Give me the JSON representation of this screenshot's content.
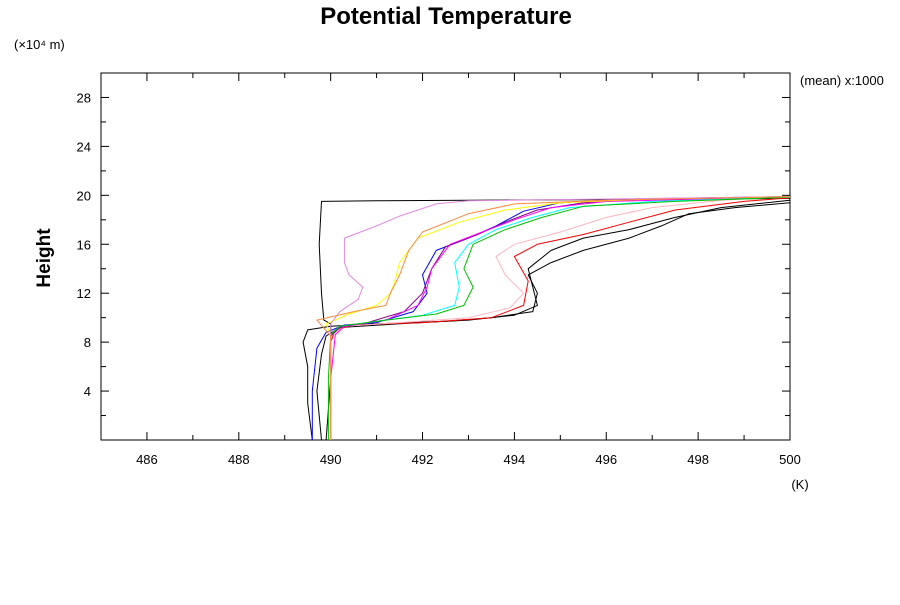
{
  "chart_data": {
    "type": "line",
    "title": "Potential Temperature",
    "ylabel": "Height",
    "y_scale_label": "(×10⁴ m)",
    "xunit_label": "(K)",
    "annotation": "(mean) x:1000",
    "xlim": [
      485,
      500
    ],
    "ylim": [
      0,
      30
    ],
    "xticks": [
      486,
      488,
      490,
      492,
      494,
      496,
      498,
      500
    ],
    "yticks": [
      4,
      8,
      12,
      16,
      20,
      24,
      28
    ],
    "grid": false,
    "legend": "none",
    "series": [
      {
        "color": "#000000",
        "points": [
          [
            489.9,
            0
          ],
          [
            490.0,
            5
          ],
          [
            490.0,
            9.5
          ],
          [
            489.85,
            9.8
          ],
          [
            489.8,
            12
          ],
          [
            489.75,
            16
          ],
          [
            489.8,
            19.5
          ],
          [
            491.0,
            19.55
          ],
          [
            493.0,
            19.6
          ],
          [
            496.0,
            19.65
          ],
          [
            498.0,
            19.7
          ],
          [
            500.0,
            19.75
          ]
        ]
      },
      {
        "color": "#000000",
        "points": [
          [
            489.6,
            0
          ],
          [
            489.5,
            3
          ],
          [
            489.5,
            6
          ],
          [
            489.4,
            8
          ],
          [
            489.5,
            9
          ],
          [
            490.0,
            9.3
          ],
          [
            491.0,
            9.5
          ],
          [
            492.5,
            9.7
          ],
          [
            493.5,
            10.0
          ],
          [
            494.4,
            10.5
          ],
          [
            494.5,
            12
          ],
          [
            494.3,
            13.5
          ],
          [
            494.8,
            14.5
          ],
          [
            495.5,
            15.5
          ],
          [
            496.5,
            16.5
          ],
          [
            497.2,
            17.5
          ],
          [
            497.8,
            18.5
          ],
          [
            498.8,
            19.0
          ],
          [
            500.0,
            19.4
          ]
        ]
      },
      {
        "color": "#000000",
        "points": [
          [
            489.8,
            0
          ],
          [
            489.7,
            4
          ],
          [
            489.8,
            7
          ],
          [
            489.9,
            8.5
          ],
          [
            490.2,
            9.2
          ],
          [
            491.5,
            9.5
          ],
          [
            493.0,
            9.8
          ],
          [
            494.0,
            10.2
          ],
          [
            494.5,
            11
          ],
          [
            494.4,
            12.5
          ],
          [
            494.3,
            14
          ],
          [
            494.8,
            15.5
          ],
          [
            495.5,
            16.5
          ],
          [
            496.5,
            17.2
          ],
          [
            497.5,
            18.2
          ],
          [
            498.5,
            19.0
          ],
          [
            500.0,
            19.6
          ]
        ]
      },
      {
        "color": "#ff0000",
        "points": [
          [
            490.0,
            0
          ],
          [
            490.0,
            4
          ],
          [
            490.0,
            8
          ],
          [
            490.1,
            9.0
          ],
          [
            490.5,
            9.4
          ],
          [
            492.0,
            9.6
          ],
          [
            493.5,
            10.0
          ],
          [
            494.2,
            11
          ],
          [
            494.3,
            13
          ],
          [
            494.0,
            15
          ],
          [
            494.5,
            16
          ],
          [
            495.5,
            16.8
          ],
          [
            496.5,
            17.8
          ],
          [
            497.5,
            18.8
          ],
          [
            499.0,
            19.5
          ],
          [
            500.0,
            19.8
          ]
        ]
      },
      {
        "color": "#ffb6c1",
        "points": [
          [
            490.0,
            0
          ],
          [
            490.0,
            5
          ],
          [
            490.0,
            8.5
          ],
          [
            490.3,
            9.3
          ],
          [
            491.5,
            9.6
          ],
          [
            493.0,
            10.0
          ],
          [
            493.9,
            10.8
          ],
          [
            494.2,
            12
          ],
          [
            493.8,
            13.5
          ],
          [
            493.6,
            15
          ],
          [
            494.0,
            16
          ],
          [
            495.0,
            17
          ],
          [
            496.0,
            18.2
          ],
          [
            497.0,
            19.0
          ],
          [
            498.5,
            19.6
          ],
          [
            500.0,
            19.9
          ]
        ]
      },
      {
        "color": "#0000ff",
        "points": [
          [
            489.6,
            0
          ],
          [
            489.6,
            4
          ],
          [
            489.7,
            7.5
          ],
          [
            489.9,
            8.8
          ],
          [
            490.3,
            9.4
          ],
          [
            491.0,
            9.6
          ],
          [
            491.8,
            10.5
          ],
          [
            492.1,
            12
          ],
          [
            492.0,
            13.5
          ],
          [
            492.3,
            15.5
          ],
          [
            493.0,
            16.5
          ],
          [
            493.6,
            17.5
          ],
          [
            494.2,
            18.7
          ],
          [
            495.0,
            19.4
          ],
          [
            496.5,
            19.7
          ],
          [
            500.0,
            19.9
          ]
        ]
      },
      {
        "color": "#800080",
        "points": [
          [
            490.0,
            0
          ],
          [
            490.0,
            5
          ],
          [
            490.0,
            8.5
          ],
          [
            490.2,
            9.2
          ],
          [
            490.8,
            9.6
          ],
          [
            491.6,
            10.5
          ],
          [
            492.0,
            12
          ],
          [
            492.2,
            14
          ],
          [
            492.5,
            15.8
          ],
          [
            493.2,
            16.8
          ],
          [
            493.8,
            17.8
          ],
          [
            494.5,
            18.8
          ],
          [
            495.5,
            19.4
          ],
          [
            497.0,
            19.7
          ],
          [
            500.0,
            19.9
          ]
        ]
      },
      {
        "color": "#ff00ff",
        "points": [
          [
            490.0,
            0
          ],
          [
            490.0,
            5
          ],
          [
            490.1,
            8.6
          ],
          [
            490.3,
            9.3
          ],
          [
            491.2,
            9.8
          ],
          [
            491.9,
            11
          ],
          [
            492.1,
            12.5
          ],
          [
            492.2,
            14
          ],
          [
            492.6,
            16
          ],
          [
            493.3,
            17
          ],
          [
            494.0,
            18
          ],
          [
            494.8,
            19.0
          ],
          [
            496.0,
            19.5
          ],
          [
            500.0,
            19.85
          ]
        ]
      },
      {
        "color": "#00ffff",
        "points": [
          [
            490.0,
            0
          ],
          [
            490.0,
            5
          ],
          [
            490.0,
            8.6
          ],
          [
            490.2,
            9.3
          ],
          [
            491.0,
            9.7
          ],
          [
            492.0,
            10.2
          ],
          [
            492.7,
            11
          ],
          [
            492.8,
            12.5
          ],
          [
            492.7,
            14.5
          ],
          [
            493.0,
            16
          ],
          [
            493.6,
            17.2
          ],
          [
            494.4,
            18.2
          ],
          [
            495.2,
            19.0
          ],
          [
            497.0,
            19.5
          ],
          [
            500.0,
            19.85
          ]
        ]
      },
      {
        "color": "#00c000",
        "points": [
          [
            489.95,
            0
          ],
          [
            489.95,
            5
          ],
          [
            490.0,
            8.6
          ],
          [
            490.2,
            9.3
          ],
          [
            491.2,
            9.8
          ],
          [
            492.3,
            10.3
          ],
          [
            492.9,
            11
          ],
          [
            493.1,
            12.5
          ],
          [
            492.9,
            14
          ],
          [
            493.1,
            16
          ],
          [
            493.8,
            17.2
          ],
          [
            494.6,
            18.2
          ],
          [
            495.5,
            19.1
          ],
          [
            497.5,
            19.5
          ],
          [
            500.0,
            19.85
          ]
        ]
      },
      {
        "color": "#ffff00",
        "points": [
          [
            490.0,
            0
          ],
          [
            490.0,
            5
          ],
          [
            490.0,
            8.5
          ],
          [
            489.9,
            9.5
          ],
          [
            490.4,
            10.3
          ],
          [
            491.0,
            11.0
          ],
          [
            491.3,
            12
          ],
          [
            491.4,
            13
          ],
          [
            491.5,
            14.5
          ],
          [
            491.9,
            16.5
          ],
          [
            492.8,
            17.8
          ],
          [
            493.8,
            18.8
          ],
          [
            495.0,
            19.4
          ],
          [
            497.0,
            19.7
          ],
          [
            500.0,
            19.9
          ]
        ]
      },
      {
        "color": "#e08ae0",
        "points": [
          [
            490.0,
            0
          ],
          [
            490.0,
            5
          ],
          [
            490.0,
            8.5
          ],
          [
            490.0,
            9.5
          ],
          [
            490.2,
            10.5
          ],
          [
            490.6,
            11.5
          ],
          [
            490.7,
            12.5
          ],
          [
            490.4,
            13.5
          ],
          [
            490.3,
            14.5
          ],
          [
            490.3,
            16.5
          ],
          [
            491.0,
            17.5
          ],
          [
            491.5,
            18.3
          ],
          [
            492.3,
            19.3
          ],
          [
            493.0,
            19.55
          ],
          [
            500.0,
            19.9
          ]
        ]
      },
      {
        "color": "#ff8c40",
        "points": [
          [
            490.0,
            0
          ],
          [
            490.0,
            5
          ],
          [
            490.0,
            8.5
          ],
          [
            489.7,
            9.8
          ],
          [
            490.5,
            10.5
          ],
          [
            491.2,
            11
          ],
          [
            491.3,
            12
          ],
          [
            491.5,
            13.5
          ],
          [
            491.7,
            15.5
          ],
          [
            492.0,
            17
          ],
          [
            493.0,
            18.5
          ],
          [
            494.0,
            19.3
          ],
          [
            496.0,
            19.6
          ],
          [
            500.0,
            19.9
          ]
        ]
      }
    ]
  }
}
